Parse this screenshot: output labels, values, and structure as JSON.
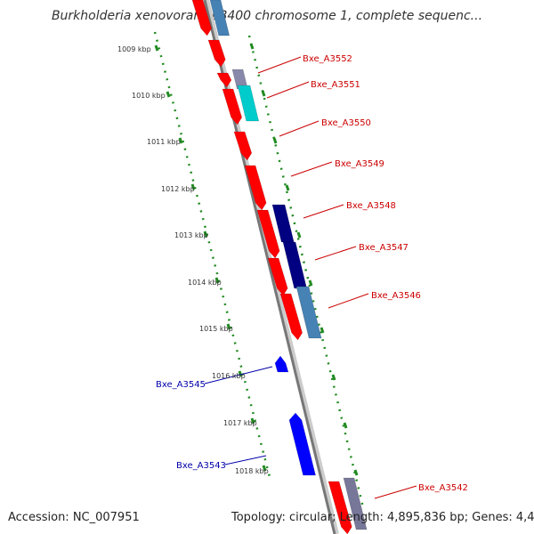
{
  "title": "Burkholderia xenovorans LB400 chromosome 1, complete sequenc...",
  "footer": {
    "accession": "Accession: NC_007951",
    "topology": "Topology: circular; Length: 4,895,836 bp; Genes: 4,498"
  },
  "ticks": [
    "1009 kbp",
    "1010 kbp",
    "1011 kbp",
    "1012 kbp",
    "1013 kbp",
    "1014 kbp",
    "1015 kbp",
    "1016 kbp",
    "1017 kbp",
    "1018 kbp"
  ],
  "gene_labels_right": [
    "Bxe_A3552",
    "Bxe_A3551",
    "Bxe_A3550",
    "Bxe_A3549",
    "Bxe_A3548",
    "Bxe_A3547",
    "Bxe_A3546",
    "Bxe_A3542"
  ],
  "gene_labels_left": [
    "Bxe_A3545",
    "Bxe_A3543"
  ],
  "colors": {
    "right_label": "#cc0000",
    "left_label": "#0000aa",
    "gene_red": "#ff0000",
    "gene_blue": "#0000ff",
    "gene_navy": "#000080",
    "gene_steel": "#4682b4",
    "gene_cyan": "#00cccc",
    "tick_green": "#228b22",
    "backbone": "#888888"
  }
}
